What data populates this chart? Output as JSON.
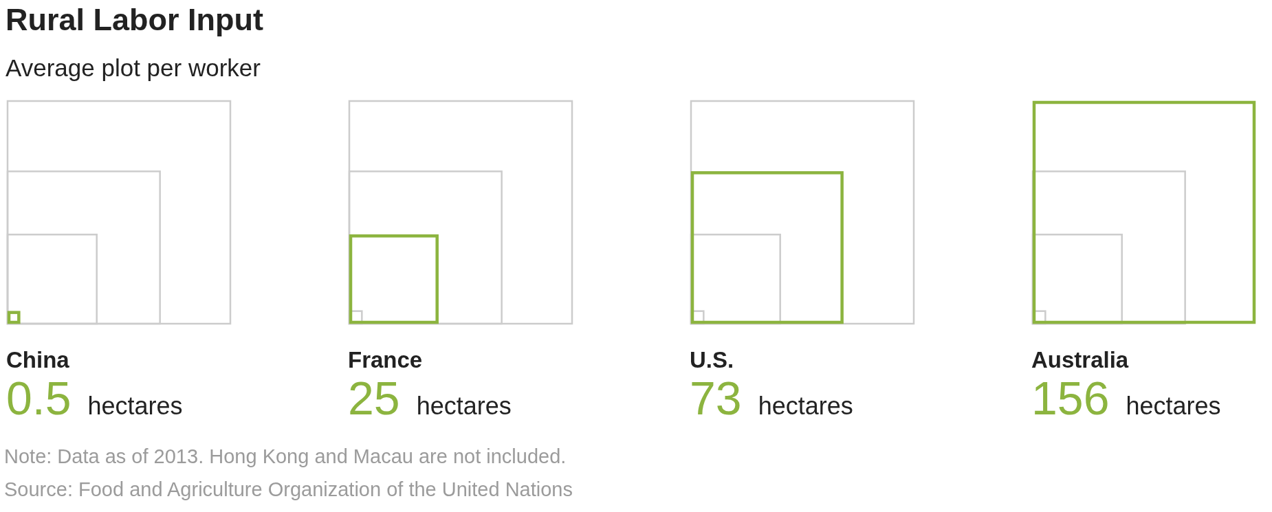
{
  "chart_data": {
    "type": "other",
    "title": "Rural Labor Input",
    "subtitle": "Average plot per worker",
    "categories": [
      "China",
      "France",
      "U.S.",
      "Australia"
    ],
    "values": [
      0.5,
      25,
      73,
      156
    ],
    "color": "#8cb43f",
    "ylabel": "hectares",
    "data_labels": true,
    "annotations": [
      "Note: Data as of 2013. Hong Kong and Macau are not included.",
      "Source: Food and Agriculture Organization of the United Nations"
    ]
  }
}
